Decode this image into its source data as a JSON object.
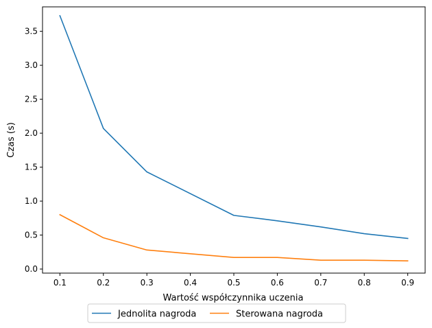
{
  "chart_data": {
    "type": "line",
    "title": "",
    "xlabel": "Wartość współczynnika uczenia",
    "ylabel": "Czas (s)",
    "x": [
      0.1,
      0.2,
      0.3,
      0.5,
      0.6,
      0.7,
      0.8,
      0.9
    ],
    "xlim": [
      0.06,
      0.94
    ],
    "ylim": [
      -0.06,
      3.86
    ],
    "xticks": [
      0.1,
      0.2,
      0.3,
      0.4,
      0.5,
      0.6,
      0.7,
      0.8,
      0.9
    ],
    "xtick_labels": [
      "0.1",
      "0.2",
      "0.3",
      "0.4",
      "0.5",
      "0.6",
      "0.7",
      "0.8",
      "0.9"
    ],
    "yticks": [
      0.0,
      0.5,
      1.0,
      1.5,
      2.0,
      2.5,
      3.0,
      3.5
    ],
    "ytick_labels": [
      "0.0",
      "0.5",
      "1.0",
      "1.5",
      "2.0",
      "2.5",
      "3.0",
      "3.5"
    ],
    "grid": false,
    "legend_position": "bottom-center, below axes",
    "series": [
      {
        "name": "Jednolita nagroda",
        "color": "#1f77b4",
        "values": [
          3.73,
          2.07,
          1.43,
          0.79,
          0.71,
          0.62,
          0.52,
          0.45
        ]
      },
      {
        "name": "Sterowana nagroda",
        "color": "#ff7f0e",
        "values": [
          0.8,
          0.46,
          0.28,
          0.17,
          0.17,
          0.13,
          0.13,
          0.12
        ]
      }
    ]
  }
}
